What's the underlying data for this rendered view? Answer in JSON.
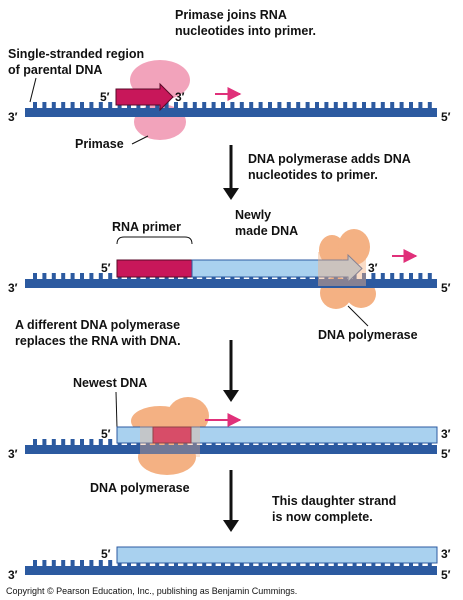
{
  "colors": {
    "parental_dna": "#2c5aa0",
    "new_dna": "#a9d1ef",
    "rna_primer": "#c8175a",
    "primase": "#f2a3bb",
    "dna_polymerase": "#f4b183",
    "arrow": "#e0307a"
  },
  "step1": {
    "caption_line1": "Primase joins RNA",
    "caption_line2": "nucleotides into primer.",
    "region_label_line1": "Single-stranded region",
    "region_label_line2": "of parental DNA",
    "enzyme_label": "Primase",
    "primer_5": "5′",
    "primer_3": "3′",
    "strand_3": "3′",
    "strand_5": "5′"
  },
  "step2": {
    "caption_line1": "DNA polymerase adds DNA",
    "caption_line2": "nucleotides to primer.",
    "primer_label": "RNA primer",
    "new_dna_line1": "Newly",
    "new_dna_line2": "made DNA",
    "enzyme_label": "DNA polymerase",
    "new_5": "5′",
    "new_3": "3′",
    "strand_3": "3′",
    "strand_5": "5′"
  },
  "step3": {
    "caption_line1": "A different DNA polymerase",
    "caption_line2": "replaces the RNA with DNA.",
    "newest_label": "Newest DNA",
    "enzyme_label": "DNA polymerase",
    "top_5": "5′",
    "top_3": "3′",
    "strand_3": "3′",
    "strand_5": "5′"
  },
  "step4": {
    "caption_line1": "This daughter strand",
    "caption_line2": "is now complete.",
    "top_5": "5′",
    "top_3": "3′",
    "strand_3": "3′",
    "strand_5": "5′"
  },
  "copyright": "Copyright © Pearson Education, Inc., publishing as Benjamin Cummings."
}
